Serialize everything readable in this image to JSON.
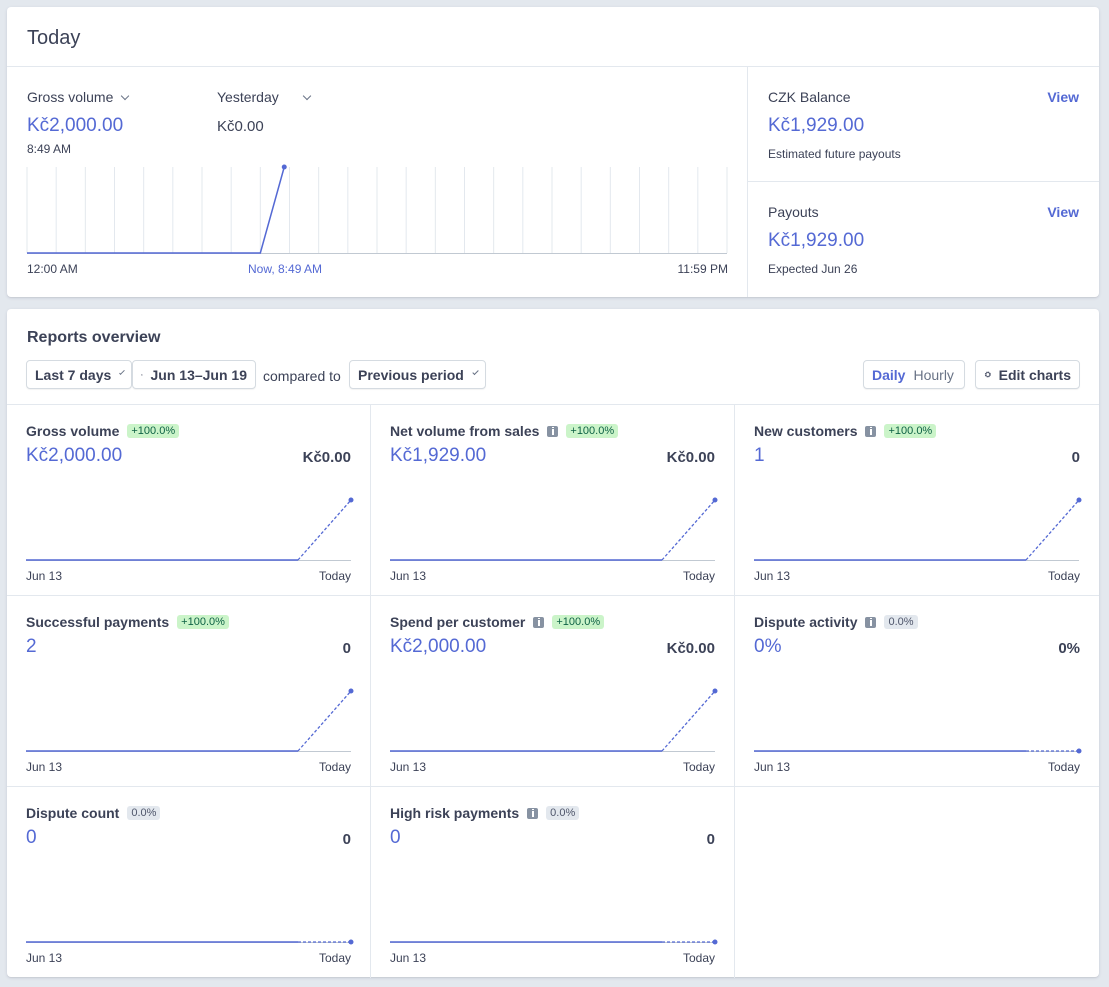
{
  "today": {
    "title": "Today",
    "gross_volume": {
      "label": "Gross volume",
      "value": "Kč2,000.00",
      "time": "8:49 AM"
    },
    "compare": {
      "label": "Yesterday",
      "value": "Kč0.00"
    },
    "chart": {
      "x_labels": [
        "12:00 AM",
        "Now, 8:49 AM",
        "11:59 PM"
      ],
      "points": [
        [
          0,
          0
        ],
        [
          8.0,
          0
        ],
        [
          8.82,
          2000
        ]
      ],
      "x_range": [
        0,
        24
      ],
      "y_range": [
        0,
        2000
      ],
      "gridlines": 25
    }
  },
  "balance": {
    "label": "CZK Balance",
    "link": "View",
    "value": "Kč1,929.00",
    "note": "Estimated future payouts"
  },
  "payouts": {
    "label": "Payouts",
    "link": "View",
    "value": "Kč1,929.00",
    "note": "Expected Jun 26"
  },
  "reports": {
    "title": "Reports overview",
    "range": "Last 7 days",
    "dates": "Jun 13–Jun 19",
    "compared_to": "compared to",
    "compare_period": "Previous period",
    "daily": "Daily",
    "hourly": "Hourly",
    "edit": "Edit charts",
    "x_start": "Jun 13",
    "x_end": "Today",
    "metrics": [
      {
        "id": "gross-volume",
        "title": "Gross volume",
        "info": false,
        "badge": "+100.0%",
        "badge_type": "pos",
        "value": "Kč2,000.00",
        "previous": "Kč0.00",
        "last_point": 1
      },
      {
        "id": "net-volume",
        "title": "Net volume from sales",
        "info": true,
        "badge": "+100.0%",
        "badge_type": "pos",
        "value": "Kč1,929.00",
        "previous": "Kč0.00",
        "last_point": 1
      },
      {
        "id": "new-customers",
        "title": "New customers",
        "info": true,
        "badge": "+100.0%",
        "badge_type": "pos",
        "value": "1",
        "previous": "0",
        "last_point": 1
      },
      {
        "id": "successful-payments",
        "title": "Successful payments",
        "info": false,
        "badge": "+100.0%",
        "badge_type": "pos",
        "value": "2",
        "previous": "0",
        "last_point": 1
      },
      {
        "id": "spend-per-customer",
        "title": "Spend per customer",
        "info": true,
        "badge": "+100.0%",
        "badge_type": "pos",
        "value": "Kč2,000.00",
        "previous": "Kč0.00",
        "last_point": 1
      },
      {
        "id": "dispute-activity",
        "title": "Dispute activity",
        "info": true,
        "badge": "0.0%",
        "badge_type": "neu",
        "value": "0%",
        "previous": "0%",
        "last_point": 0
      },
      {
        "id": "dispute-count",
        "title": "Dispute count",
        "info": false,
        "badge": "0.0%",
        "badge_type": "neu",
        "value": "0",
        "previous": "0",
        "last_point": 0
      },
      {
        "id": "high-risk-payments",
        "title": "High risk payments",
        "info": true,
        "badge": "0.0%",
        "badge_type": "neu",
        "value": "0",
        "previous": "0",
        "last_point": 0
      }
    ]
  },
  "colors": {
    "accent": "#5469d4",
    "text": "#3c4257",
    "grid": "#e3e8ee"
  }
}
